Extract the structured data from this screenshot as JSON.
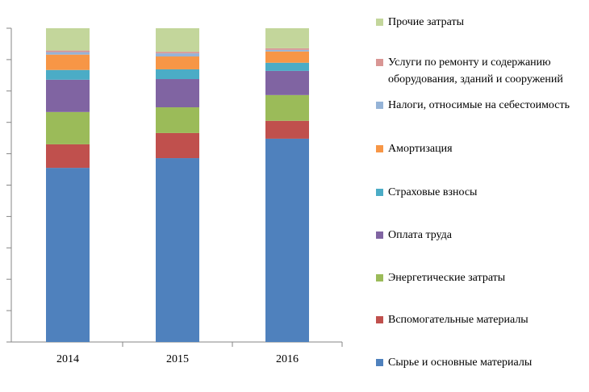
{
  "chart_data": {
    "type": "stacked_bar",
    "categories": [
      "2014",
      "2015",
      "2016"
    ],
    "series": [
      {
        "name": "Сырье и основные материалы",
        "color": "#4f81bd",
        "values": [
          55.5,
          58.6,
          64.8
        ]
      },
      {
        "name": "Вспомогательные материалы",
        "color": "#c0504d",
        "values": [
          7.5,
          8.0,
          5.7
        ]
      },
      {
        "name": "Энергетические затраты",
        "color": "#9bbb59",
        "values": [
          10.3,
          8.2,
          8.2
        ]
      },
      {
        "name": "Оплата труда",
        "color": "#8064a2",
        "values": [
          10.3,
          9.0,
          7.7
        ]
      },
      {
        "name": "Страховые взносы",
        "color": "#4bacc6",
        "values": [
          3.1,
          3.1,
          2.6
        ]
      },
      {
        "name": "Амортизация",
        "color": "#f79646",
        "values": [
          4.9,
          4.1,
          3.6
        ]
      },
      {
        "name": "Налоги, относимые на себестоимость",
        "color": "#95b3d7",
        "values": [
          0.8,
          1.0,
          0.5
        ]
      },
      {
        "name": "Услуги по ремонту и содержанию оборудования, зданий и сооружений",
        "color": "#d99694",
        "values": [
          0.5,
          0.5,
          0.5
        ]
      },
      {
        "name": "Прочие затраты",
        "color": "#c3d69b",
        "values": [
          7.1,
          7.5,
          6.4
        ]
      }
    ],
    "ylim": [
      0,
      100
    ],
    "yticks": [
      0,
      10,
      20,
      30,
      40,
      50,
      60,
      70,
      80,
      90,
      100
    ],
    "legend": "right"
  }
}
